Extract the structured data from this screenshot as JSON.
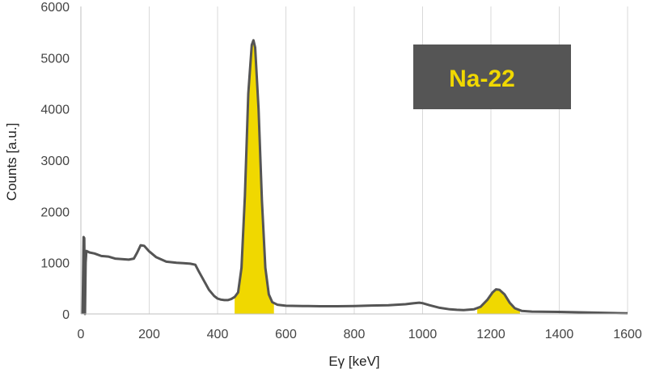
{
  "chart_data": {
    "type": "line",
    "title": "",
    "xlabel": "Eγ [keV]",
    "ylabel": "Counts [a.u.]",
    "xlim": [
      0,
      1600
    ],
    "ylim": [
      0,
      6000
    ],
    "xticks": [
      0,
      200,
      400,
      600,
      800,
      1000,
      1200,
      1400,
      1600
    ],
    "yticks": [
      0,
      1000,
      2000,
      3000,
      4000,
      5000,
      6000
    ],
    "grid": "vertical",
    "colors": {
      "line": "#555555",
      "fill": "#f0d800",
      "annot_bg": "#555555",
      "annot_text": "#f0d800"
    },
    "annotation": {
      "text": "Na-22",
      "position": "top-right"
    },
    "series": [
      {
        "values": [
          [
            5,
            0
          ],
          [
            8,
            1500
          ],
          [
            10,
            1480
          ],
          [
            12,
            0
          ],
          [
            14,
            1000
          ],
          [
            16,
            1230
          ],
          [
            25,
            1200
          ],
          [
            40,
            1180
          ],
          [
            60,
            1130
          ],
          [
            80,
            1120
          ],
          [
            100,
            1080
          ],
          [
            120,
            1070
          ],
          [
            140,
            1060
          ],
          [
            155,
            1080
          ],
          [
            165,
            1200
          ],
          [
            175,
            1340
          ],
          [
            185,
            1330
          ],
          [
            200,
            1220
          ],
          [
            220,
            1110
          ],
          [
            250,
            1020
          ],
          [
            280,
            1000
          ],
          [
            300,
            990
          ],
          [
            320,
            980
          ],
          [
            335,
            960
          ],
          [
            345,
            830
          ],
          [
            360,
            650
          ],
          [
            375,
            470
          ],
          [
            390,
            350
          ],
          [
            400,
            300
          ],
          [
            410,
            280
          ],
          [
            420,
            270
          ],
          [
            430,
            270
          ],
          [
            440,
            290
          ],
          [
            450,
            330
          ],
          [
            460,
            420
          ],
          [
            470,
            900
          ],
          [
            480,
            2300
          ],
          [
            490,
            4300
          ],
          [
            500,
            5250
          ],
          [
            505,
            5340
          ],
          [
            510,
            5200
          ],
          [
            520,
            4000
          ],
          [
            530,
            2200
          ],
          [
            540,
            900
          ],
          [
            550,
            380
          ],
          [
            560,
            230
          ],
          [
            575,
            180
          ],
          [
            600,
            160
          ],
          [
            650,
            155
          ],
          [
            700,
            150
          ],
          [
            750,
            150
          ],
          [
            800,
            155
          ],
          [
            850,
            165
          ],
          [
            900,
            170
          ],
          [
            950,
            190
          ],
          [
            975,
            210
          ],
          [
            990,
            220
          ],
          [
            1000,
            210
          ],
          [
            1020,
            170
          ],
          [
            1050,
            120
          ],
          [
            1080,
            90
          ],
          [
            1100,
            80
          ],
          [
            1120,
            75
          ],
          [
            1150,
            90
          ],
          [
            1170,
            140
          ],
          [
            1190,
            280
          ],
          [
            1205,
            420
          ],
          [
            1215,
            480
          ],
          [
            1225,
            470
          ],
          [
            1240,
            380
          ],
          [
            1255,
            220
          ],
          [
            1270,
            110
          ],
          [
            1290,
            60
          ],
          [
            1320,
            45
          ],
          [
            1400,
            40
          ],
          [
            1500,
            25
          ],
          [
            1580,
            15
          ],
          [
            1600,
            12
          ]
        ]
      }
    ],
    "highlight_regions": [
      [
        450,
        565
      ],
      [
        1160,
        1285
      ]
    ]
  }
}
